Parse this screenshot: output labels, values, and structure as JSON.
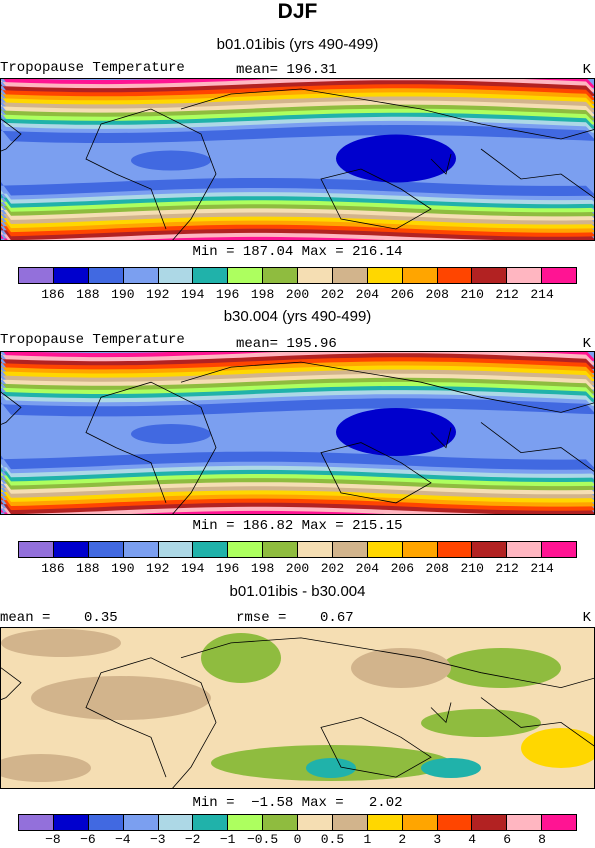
{
  "title": "DJF",
  "panels": [
    {
      "id": "p1",
      "title": "b01.01ibis (yrs 490-499)",
      "left_label": "Tropopause Temperature",
      "center_label": "mean= 196.31",
      "right_label": "K",
      "minmax": "Min = 187.04 Max = 216.14"
    },
    {
      "id": "p2",
      "title": "b30.004 (yrs 490-499)",
      "left_label": "Tropopause Temperature",
      "center_label": "mean= 195.96",
      "right_label": "K",
      "minmax": "Min = 186.82 Max = 215.15"
    },
    {
      "id": "p3",
      "title": "b01.01ibis - b30.004",
      "left_label": "mean =    0.35",
      "center_label": "rmse =    0.67",
      "right_label": "K",
      "minmax": "Min =  −1.58 Max =   2.02"
    }
  ],
  "colorbar_colors": [
    "#9370db",
    "#0000cd",
    "#4169e1",
    "#7b9ff0",
    "#add8e6",
    "#20b2aa",
    "#adff5f",
    "#8fbc3f",
    "#f5deb3",
    "#d2b48c",
    "#ffd700",
    "#ffa500",
    "#ff4500",
    "#b22222",
    "#ffb6c1",
    "#ff1493"
  ],
  "temp_ticks": [
    "186",
    "188",
    "190",
    "192",
    "194",
    "196",
    "198",
    "200",
    "202",
    "204",
    "206",
    "208",
    "210",
    "212",
    "214"
  ],
  "diff_ticks": [
    "−8",
    "−6",
    "−4",
    "−3",
    "−2",
    "−1",
    "−0.5",
    "0",
    "0.5",
    "1",
    "2",
    "3",
    "4",
    "6",
    "8"
  ]
}
